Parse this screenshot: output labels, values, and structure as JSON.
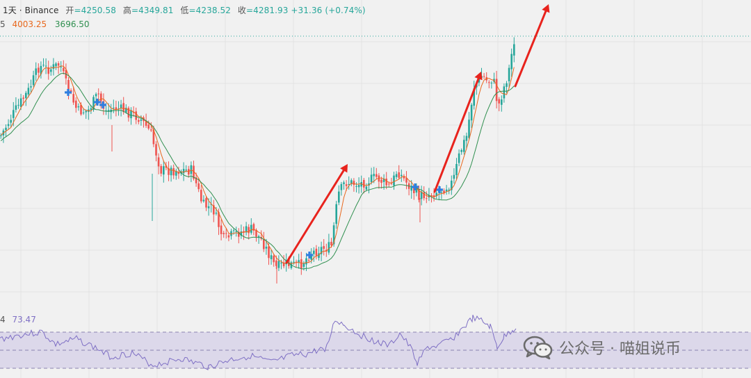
{
  "header": {
    "interval": "1天",
    "separator": "·",
    "exchange": "Binance",
    "open_label": "开",
    "open": "=4250.58",
    "high_label": "高",
    "high": "=4349.81",
    "low_label": "低",
    "low": "=4238.52",
    "close_label": "收",
    "close": "=4281.93",
    "change": "+31.36 (+0.74%)"
  },
  "ma_legend": {
    "cut_text": "5",
    "ma_short_value": "4003.25",
    "ma_long_value": "3696.50",
    "ma_short_color": "#e8671c",
    "ma_long_color": "#2f8f4f"
  },
  "rsi_legend": {
    "cut_text": "4",
    "value": "73.47",
    "color": "#7e6fc4"
  },
  "watermark": {
    "icon": "wechat-icon",
    "text": "公众号 · 喵姐说币"
  },
  "chart_data": {
    "type": "candlestick",
    "up_color": "#26a69a",
    "down_color": "#ef5350",
    "last_close": 4281.93,
    "grid": true,
    "support_description": "price up-trend arrows drawn at the three breakout points",
    "arrows": [
      "arrow-1",
      "arrow-2",
      "arrow-3"
    ]
  }
}
